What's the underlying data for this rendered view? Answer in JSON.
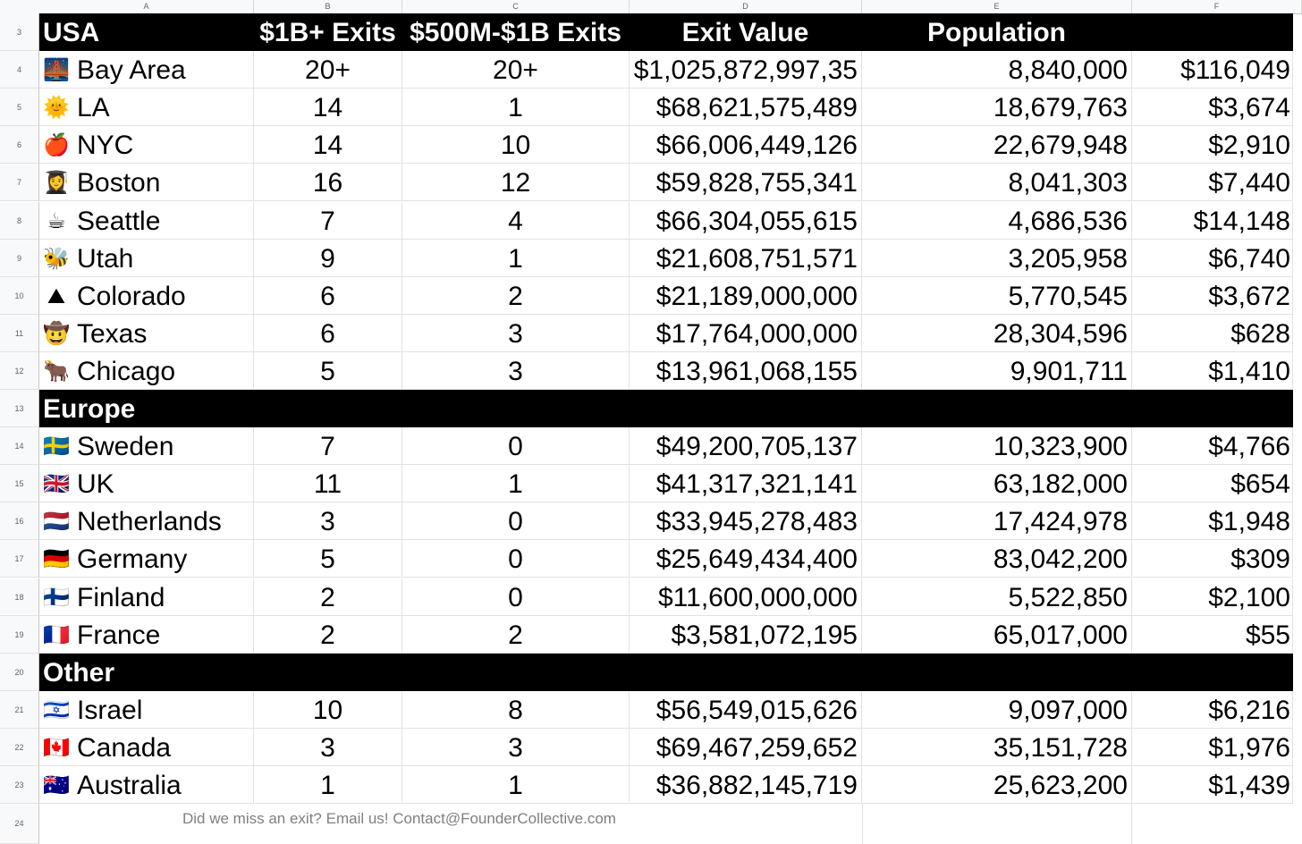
{
  "columns": [
    "A",
    "B",
    "C",
    "D",
    "E",
    "F"
  ],
  "row_numbers": [
    "3",
    "4",
    "5",
    "6",
    "7",
    "8",
    "9",
    "10",
    "11",
    "12",
    "13",
    "14",
    "15",
    "16",
    "17",
    "18",
    "19",
    "20",
    "21",
    "22",
    "23",
    "24"
  ],
  "header": {
    "region": "USA",
    "b": "$1B+ Exits",
    "c": "$500M-$1B Exits",
    "d": "Exit Value",
    "e": "Population",
    "f": ""
  },
  "usa": [
    {
      "icon": "🌉",
      "name": "Bay Area",
      "b": "20+",
      "c": "20+",
      "d": "$1,025,872,997,35",
      "e": "8,840,000",
      "f": "$116,049"
    },
    {
      "icon": "🌞",
      "name": "LA",
      "b": "14",
      "c": "1",
      "d": "$68,621,575,489",
      "e": "18,679,763",
      "f": "$3,674"
    },
    {
      "icon": "🍎",
      "name": "NYC",
      "b": "14",
      "c": "10",
      "d": "$66,006,449,126",
      "e": "22,679,948",
      "f": "$2,910"
    },
    {
      "icon": "👩‍🎓",
      "name": "Boston",
      "b": "16",
      "c": "12",
      "d": "$59,828,755,341",
      "e": "8,041,303",
      "f": "$7,440"
    },
    {
      "icon": "☕",
      "name": "Seattle",
      "b": "7",
      "c": "4",
      "d": "$66,304,055,615",
      "e": "4,686,536",
      "f": "$14,148"
    },
    {
      "icon": "🐝",
      "name": "Utah",
      "b": "9",
      "c": "1",
      "d": "$21,608,751,571",
      "e": "3,205,958",
      "f": "$6,740"
    },
    {
      "icon": "⛰",
      "name": "Colorado",
      "b": "6",
      "c": "2",
      "d": "$21,189,000,000",
      "e": "5,770,545",
      "f": "$3,672"
    },
    {
      "icon": "🤠",
      "name": "Texas",
      "b": "6",
      "c": "3",
      "d": "$17,764,000,000",
      "e": "28,304,596",
      "f": "$628"
    },
    {
      "icon": "🐂",
      "name": "Chicago",
      "b": "5",
      "c": "3",
      "d": "$13,961,068,155",
      "e": "9,901,711",
      "f": "$1,410"
    }
  ],
  "europe_label": "Europe",
  "europe": [
    {
      "icon": "🇸🇪",
      "name": "Sweden",
      "b": "7",
      "c": "0",
      "d": "$49,200,705,137",
      "e": "10,323,900",
      "f": "$4,766"
    },
    {
      "icon": "🇬🇧",
      "name": "UK",
      "b": "11",
      "c": "1",
      "d": "$41,317,321,141",
      "e": "63,182,000",
      "f": "$654"
    },
    {
      "icon": "🇳🇱",
      "name": "Netherlands",
      "b": "3",
      "c": "0",
      "d": "$33,945,278,483",
      "e": "17,424,978",
      "f": "$1,948"
    },
    {
      "icon": "🇩🇪",
      "name": "Germany",
      "b": "5",
      "c": "0",
      "d": "$25,649,434,400",
      "e": "83,042,200",
      "f": "$309"
    },
    {
      "icon": "🇫🇮",
      "name": "Finland",
      "b": "2",
      "c": "0",
      "d": "$11,600,000,000",
      "e": "5,522,850",
      "f": "$2,100"
    },
    {
      "icon": "🇫🇷",
      "name": "France",
      "b": "2",
      "c": "2",
      "d": "$3,581,072,195",
      "e": "65,017,000",
      "f": "$55"
    }
  ],
  "other_label": "Other",
  "other": [
    {
      "icon": "🇮🇱",
      "name": "Israel",
      "b": "10",
      "c": "8",
      "d": "$56,549,015,626",
      "e": "9,097,000",
      "f": "$6,216"
    },
    {
      "icon": "🇨🇦",
      "name": "Canada",
      "b": "3",
      "c": "3",
      "d": "$69,467,259,652",
      "e": "35,151,728",
      "f": "$1,976"
    },
    {
      "icon": "🇦🇺",
      "name": "Australia",
      "b": "1",
      "c": "1",
      "d": "$36,882,145,719",
      "e": "25,623,200",
      "f": "$1,439"
    }
  ],
  "footer": "Did we miss an exit? Email us! Contact@FounderCollective.com"
}
